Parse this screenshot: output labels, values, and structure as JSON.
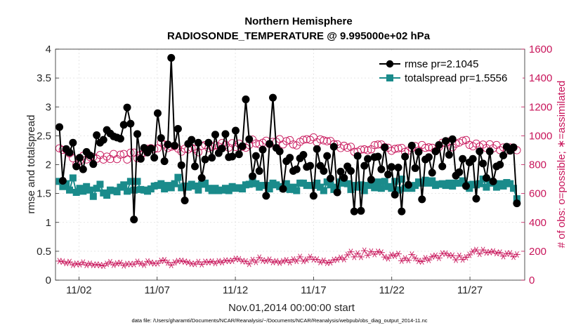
{
  "chart_data": {
    "type": "line",
    "title_line1": "Northern Hemisphere",
    "title_line2": "RADIOSONDE_TEMPERATURE @ 9.995000e+02 hPa",
    "xlabel": "Nov.01,2014 00:00:00 start",
    "ylabel_left": "rmse and totalspread",
    "ylabel_right": "# of obs: o=possible; ∗=assimilated",
    "footnote": "data file: /Users/gharamti/Documents/NCAR/Reanalysis/~/Documents/NCAR/Reanalysis/webpub/obs_diag_output_2014-11.nc",
    "x_range": [
      0.5,
      30.5
    ],
    "ylim_left": [
      0,
      4
    ],
    "ylim_right": [
      0,
      1600
    ],
    "x_ticks": [
      {
        "pos": 2,
        "label": "11/02"
      },
      {
        "pos": 7,
        "label": "11/07"
      },
      {
        "pos": 12,
        "label": "11/12"
      },
      {
        "pos": 17,
        "label": "11/17"
      },
      {
        "pos": 22,
        "label": "11/22"
      },
      {
        "pos": 27,
        "label": "11/27"
      }
    ],
    "y_ticks_left": [
      "0",
      "0.5",
      "1",
      "1.5",
      "2",
      "2.5",
      "3",
      "3.5",
      "4"
    ],
    "y_ticks_right": [
      "0",
      "200",
      "400",
      "600",
      "800",
      "1000",
      "1200",
      "1400",
      "1600"
    ],
    "colors": {
      "rmse": "#000000",
      "spread": "#1a8b8b",
      "counts": "#c8145a",
      "axis": "#262626",
      "grid": "#dfdfdf"
    },
    "legend": [
      "rmse pr=2.1045",
      "totalspread pr=1.5556"
    ],
    "series": [
      {
        "name": "rmse",
        "values": [
          2.65,
          1.72,
          2.27,
          2.21,
          2.38,
          1.97,
          2.12,
          1.92,
          2.22,
          2.16,
          2.01,
          2.51,
          2.38,
          2.43,
          2.6,
          2.54,
          2.49,
          2.47,
          2.45,
          2.69,
          2.99,
          2.71,
          1.05,
          2.53,
          2.1,
          2.29,
          2.21,
          2.28,
          2.12,
          2.89,
          2.46,
          2.06,
          2.35,
          3.85,
          2.33,
          2.62,
          1.99,
          1.38,
          2.36,
          2.43,
          1.97,
          2.38,
          1.77,
          2.09,
          2.38,
          2.12,
          2.52,
          2.2,
          2.28,
          2.53,
          2.13,
          2.14,
          2.59,
          2.18,
          2.32,
          3.13,
          2.44,
          1.8,
          2.15,
          1.89,
          2.26,
          1.46,
          2.36,
          3.16,
          2.29,
          2.23,
          1.58,
          2.06,
          2.12,
          1.89,
          1.92,
          2.11,
          2.17,
          1.96,
          1.98,
          1.46,
          2.27,
          1.98,
          1.89,
          2.15,
          1.76,
          2.31,
          1.52,
          1.88,
          1.77,
          1.97,
          1.89,
          1.19,
          2.15,
          1.2,
          1.98,
          2.1,
          1.74,
          2.13,
          2.14,
          1.92,
          2.3,
          1.83,
          1.96,
          1.48,
          1.95,
          1.19,
          2.14,
          1.65,
          2.33,
          1.94,
          2.22,
          1.4,
          2.09,
          2.13,
          1.86,
          2.23,
          2.34,
          1.97,
          2.41,
          2.17,
          2.44,
          1.81,
          1.87,
          2.1,
          1.63,
          2.04,
          2.1,
          1.41,
          2.23,
          2.02,
          1.77,
          2.23,
          1.71,
          1.97,
          2.0,
          2.16,
          2.31,
          2.24,
          2.3,
          1.33
        ]
      },
      {
        "name": "totalspread",
        "values": [
          1.71,
          1.62,
          1.67,
          1.56,
          1.77,
          1.52,
          1.59,
          1.54,
          1.62,
          1.56,
          1.45,
          1.59,
          1.66,
          1.51,
          1.47,
          1.56,
          1.55,
          1.53,
          1.61,
          1.65,
          1.54,
          1.71,
          1.56,
          1.71,
          1.57,
          1.56,
          1.54,
          1.58,
          1.63,
          1.64,
          1.67,
          1.58,
          1.64,
          1.6,
          1.67,
          1.78,
          1.6,
          1.63,
          1.61,
          1.66,
          1.63,
          1.56,
          1.66,
          1.68,
          1.59,
          1.55,
          1.59,
          1.55,
          1.56,
          1.59,
          1.55,
          1.62,
          1.59,
          1.6,
          1.58,
          1.65,
          1.66,
          1.73,
          1.67,
          1.61,
          1.64,
          1.64,
          1.58,
          1.68,
          1.65,
          1.62,
          1.59,
          1.67,
          1.57,
          1.61,
          1.55,
          1.68,
          1.68,
          1.64,
          1.64,
          1.64,
          1.68,
          1.61,
          1.55,
          1.7,
          1.65,
          1.57,
          1.61,
          1.7,
          1.68,
          1.67,
          1.57,
          1.64,
          1.61,
          1.65,
          1.55,
          1.64,
          1.67,
          1.6,
          1.7,
          1.59,
          1.71,
          1.62,
          1.59,
          1.71,
          1.56,
          1.75,
          1.59,
          1.63,
          1.59,
          1.64,
          1.7,
          1.68,
          1.73,
          1.68,
          1.72,
          1.64,
          1.66,
          1.67,
          1.64,
          1.68,
          1.63,
          1.68,
          1.68,
          1.72,
          1.65,
          1.59,
          1.66,
          1.65,
          1.67,
          1.75,
          1.61,
          1.71,
          1.68,
          1.61,
          1.67,
          1.63,
          1.69,
          1.67,
          1.59,
          1.41
        ]
      },
      {
        "name": "possible",
        "values": [
          913,
          902,
          904,
          878,
          844,
          800,
          827,
          861,
          836,
          853,
          853,
          841,
          867,
          835,
          856,
          839,
          874,
          838,
          869,
          874,
          835,
          883,
          884,
          844,
          868,
          883,
          909,
          914,
          908,
          913,
          953,
          939,
          915,
          924,
          929,
          911,
          890,
          910,
          905,
          917,
          908,
          886,
          930,
          936,
          915,
          922,
          935,
          925,
          950,
          937,
          918,
          949,
          923,
          946,
          924,
          917,
          936,
          974,
          947,
          941,
          952,
          966,
          943,
          958,
          958,
          977,
          940,
          963,
          970,
          940,
          933,
          958,
          972,
          976,
          972,
          989,
          955,
          975,
          968,
          962,
          964,
          942,
          941,
          915,
          931,
          917,
          924,
          889,
          890,
          904,
          906,
          899,
          906,
          935,
          939,
          940,
          921,
          917,
          896,
          909,
          913,
          916,
          888,
          898,
          915,
          929,
          898,
          936,
          916,
          920,
          917,
          893,
          922,
          952,
          949,
          961,
          920,
          945,
          953,
          966,
          971,
          937,
          927,
          946,
          925,
          939,
          915,
          941,
          913,
          936,
          901,
          919,
          898,
          919,
          918,
          900
        ]
      },
      {
        "name": "assimilated",
        "values": [
          132,
          128,
          118,
          126,
          106,
          114,
          110,
          122,
          105,
          114,
          105,
          108,
          104,
          100,
          113,
          125,
          106,
          115,
          120,
          102,
          112,
          111,
          111,
          127,
          115,
          106,
          130,
          121,
          116,
          117,
          134,
          138,
          122,
          105,
          123,
          132,
          134,
          128,
          123,
          114,
          112,
          126,
          110,
          127,
          124,
          129,
          118,
          131,
          124,
          136,
          133,
          135,
          148,
          145,
          132,
          130,
          113,
          140,
          126,
          156,
          136,
          133,
          142,
          125,
          131,
          121,
          131,
          138,
          124,
          144,
          133,
          161,
          132,
          141,
          161,
          144,
          143,
          125,
          135,
          120,
          124,
          140,
          143,
          155,
          145,
          175,
          196,
          161,
          185,
          161,
          204,
          173,
          198,
          180,
          197,
          191,
          160,
          151,
          175,
          169,
          182,
          135,
          151,
          139,
          177,
          152,
          133,
          129,
          152,
          140,
          164,
          170,
          154,
          185,
          184,
          172,
          170,
          141,
          169,
          143,
          158,
          175,
          199,
          209,
          182,
          209,
          191,
          194,
          199,
          187,
          191,
          166,
          184,
          186,
          162,
          178
        ]
      }
    ]
  }
}
